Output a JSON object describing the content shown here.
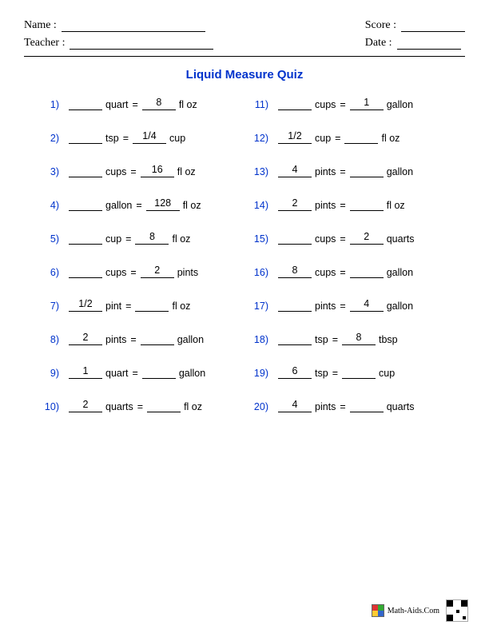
{
  "header": {
    "name_label": "Name :",
    "teacher_label": "Teacher :",
    "score_label": "Score :",
    "date_label": "Date :"
  },
  "title": "Liquid Measure Quiz",
  "colors": {
    "blue": "#0033cc"
  },
  "questions": [
    {
      "num": "1)",
      "left_val": "",
      "left_unit": "quart",
      "right_val": "8",
      "right_unit": "fl oz"
    },
    {
      "num": "2)",
      "left_val": "",
      "left_unit": "tsp",
      "right_val": "1/4",
      "right_unit": "cup"
    },
    {
      "num": "3)",
      "left_val": "",
      "left_unit": "cups",
      "right_val": "16",
      "right_unit": "fl oz"
    },
    {
      "num": "4)",
      "left_val": "",
      "left_unit": "gallon",
      "right_val": "128",
      "right_unit": "fl oz"
    },
    {
      "num": "5)",
      "left_val": "",
      "left_unit": "cup",
      "right_val": "8",
      "right_unit": "fl oz"
    },
    {
      "num": "6)",
      "left_val": "",
      "left_unit": "cups",
      "right_val": "2",
      "right_unit": "pints"
    },
    {
      "num": "7)",
      "left_val": "1/2",
      "left_unit": "pint",
      "right_val": "",
      "right_unit": "fl oz"
    },
    {
      "num": "8)",
      "left_val": "2",
      "left_unit": "pints",
      "right_val": "",
      "right_unit": "gallon"
    },
    {
      "num": "9)",
      "left_val": "1",
      "left_unit": "quart",
      "right_val": "",
      "right_unit": "gallon"
    },
    {
      "num": "10)",
      "left_val": "2",
      "left_unit": "quarts",
      "right_val": "",
      "right_unit": "fl oz"
    },
    {
      "num": "11)",
      "left_val": "",
      "left_unit": "cups",
      "right_val": "1",
      "right_unit": "gallon"
    },
    {
      "num": "12)",
      "left_val": "1/2",
      "left_unit": "cup",
      "right_val": "",
      "right_unit": "fl oz"
    },
    {
      "num": "13)",
      "left_val": "4",
      "left_unit": "pints",
      "right_val": "",
      "right_unit": "gallon"
    },
    {
      "num": "14)",
      "left_val": "2",
      "left_unit": "pints",
      "right_val": "",
      "right_unit": "fl oz"
    },
    {
      "num": "15)",
      "left_val": "",
      "left_unit": "cups",
      "right_val": "2",
      "right_unit": "quarts"
    },
    {
      "num": "16)",
      "left_val": "8",
      "left_unit": "cups",
      "right_val": "",
      "right_unit": "gallon"
    },
    {
      "num": "17)",
      "left_val": "",
      "left_unit": "pints",
      "right_val": "4",
      "right_unit": "gallon"
    },
    {
      "num": "18)",
      "left_val": "",
      "left_unit": "tsp",
      "right_val": "8",
      "right_unit": "tbsp"
    },
    {
      "num": "19)",
      "left_val": "6",
      "left_unit": "tsp",
      "right_val": "",
      "right_unit": "cup"
    },
    {
      "num": "20)",
      "left_val": "4",
      "left_unit": "pints",
      "right_val": "",
      "right_unit": "quarts"
    }
  ],
  "footer": {
    "text": "Math-Aids.Com"
  },
  "layout": {
    "order": [
      0,
      10,
      1,
      11,
      2,
      12,
      3,
      13,
      4,
      14,
      5,
      15,
      6,
      16,
      7,
      17,
      8,
      18,
      9,
      19
    ]
  }
}
